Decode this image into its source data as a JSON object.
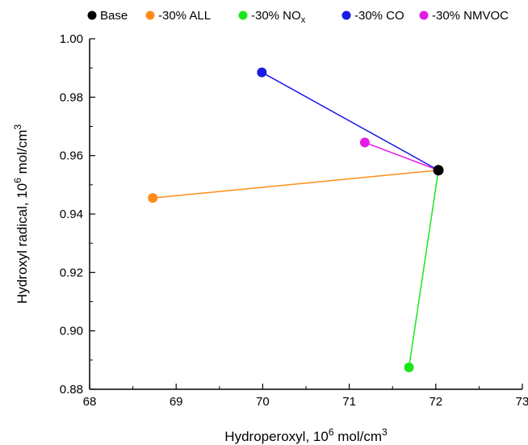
{
  "chart_data": {
    "type": "scatter",
    "xlabel": "Hydroperoxyl, 10",
    "xlabel_sup": "6",
    "xlabel_unit": " mol/cm",
    "xlabel_unit_sup": "3",
    "ylabel": "Hydroxyl radical, 10",
    "ylabel_sup": "6",
    "ylabel_unit": " mol/cm",
    "ylabel_unit_sup": "3",
    "xlim": [
      68,
      73
    ],
    "ylim": [
      0.88,
      1.0
    ],
    "x_ticks": [
      "68",
      "69",
      "70",
      "71",
      "72",
      "73"
    ],
    "y_ticks": [
      "0.88",
      "0.90",
      "0.92",
      "0.94",
      "0.96",
      "0.98",
      "1.00"
    ],
    "grid": false,
    "legend_position": "top",
    "base": {
      "name": "Base",
      "x": 72.03,
      "y": 0.955,
      "color": "#000000"
    },
    "series": [
      {
        "name": "-30% ALL",
        "name_sub": "",
        "x": 68.73,
        "y": 0.9455,
        "color": "#FF8C1A"
      },
      {
        "name": "-30% NO",
        "name_sub": "x",
        "x": 71.69,
        "y": 0.8875,
        "color": "#1AE61A"
      },
      {
        "name": "-30% CO",
        "name_sub": "",
        "x": 69.99,
        "y": 0.9885,
        "color": "#1A1AE6"
      },
      {
        "name": "-30% NMVOC",
        "name_sub": "",
        "x": 71.18,
        "y": 0.9645,
        "color": "#E61AE6"
      }
    ]
  }
}
